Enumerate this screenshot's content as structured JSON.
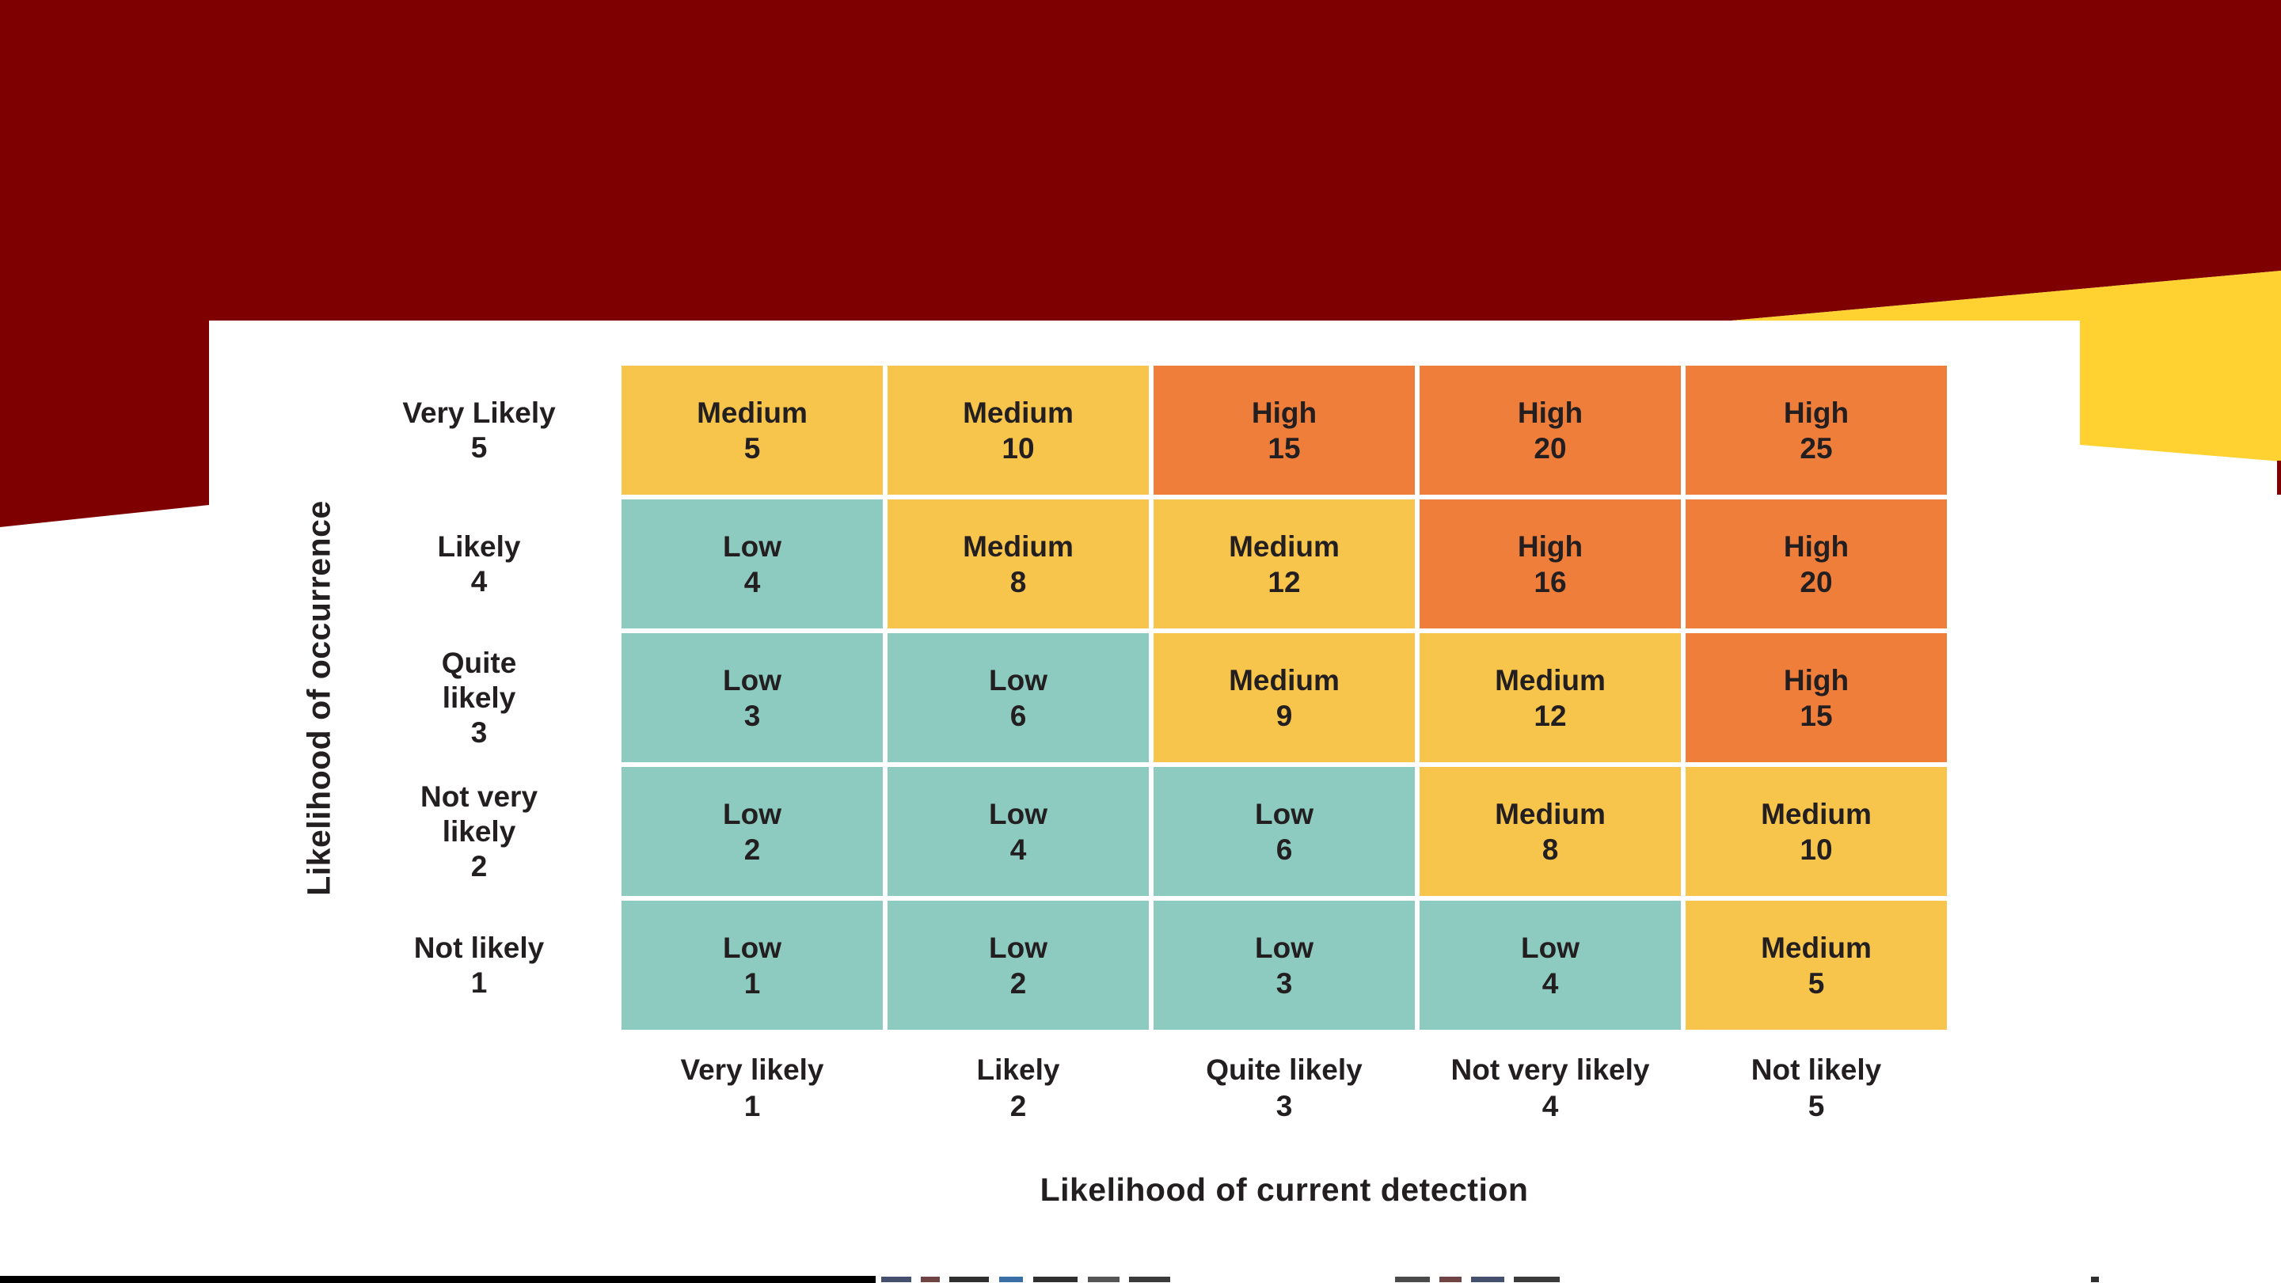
{
  "slide": {
    "background_colors": {
      "maroon_band": "#7f0000",
      "gold_ribbon": "#ffd231",
      "content_panel": "#ffffff"
    },
    "text_color": "#231f20"
  },
  "chart_data": {
    "type": "heatmap",
    "title": "",
    "grid": "5x5 risk matrix, white gridlines, no outer border",
    "x_axis": {
      "title": "Likelihood of current detection",
      "labels": [
        {
          "name": "Very likely",
          "value": "1"
        },
        {
          "name": "Likely",
          "value": "2"
        },
        {
          "name": "Quite likely",
          "value": "3"
        },
        {
          "name": "Not very likely",
          "value": "4"
        },
        {
          "name": "Not likely",
          "value": "5"
        }
      ]
    },
    "y_axis": {
      "title": "Likelihood of occurrence",
      "labels": [
        {
          "name": "Very Likely",
          "value": "5"
        },
        {
          "name": "Likely",
          "value": "4"
        },
        {
          "name": "Quite\nlikely",
          "value": "3"
        },
        {
          "name": "Not very\nlikely",
          "value": "2"
        },
        {
          "name": "Not likely",
          "value": "1"
        }
      ]
    },
    "levels": {
      "Low": {
        "color": "#8dcbc1"
      },
      "Medium": {
        "color": "#f7c54b"
      },
      "High": {
        "color": "#ef7e3b"
      }
    },
    "rows": [
      [
        {
          "level": "Medium",
          "score": "5"
        },
        {
          "level": "Medium",
          "score": "10"
        },
        {
          "level": "High",
          "score": "15"
        },
        {
          "level": "High",
          "score": "20"
        },
        {
          "level": "High",
          "score": "25"
        }
      ],
      [
        {
          "level": "Low",
          "score": "4"
        },
        {
          "level": "Medium",
          "score": "8"
        },
        {
          "level": "Medium",
          "score": "12"
        },
        {
          "level": "High",
          "score": "16"
        },
        {
          "level": "High",
          "score": "20"
        }
      ],
      [
        {
          "level": "Low",
          "score": "3"
        },
        {
          "level": "Low",
          "score": "6"
        },
        {
          "level": "Medium",
          "score": "9"
        },
        {
          "level": "Medium",
          "score": "12"
        },
        {
          "level": "High",
          "score": "15"
        }
      ],
      [
        {
          "level": "Low",
          "score": "2"
        },
        {
          "level": "Low",
          "score": "4"
        },
        {
          "level": "Low",
          "score": "6"
        },
        {
          "level": "Medium",
          "score": "8"
        },
        {
          "level": "Medium",
          "score": "10"
        }
      ],
      [
        {
          "level": "Low",
          "score": "1"
        },
        {
          "level": "Low",
          "score": "2"
        },
        {
          "level": "Low",
          "score": "3"
        },
        {
          "level": "Low",
          "score": "4"
        },
        {
          "level": "Medium",
          "score": "5"
        }
      ]
    ]
  }
}
